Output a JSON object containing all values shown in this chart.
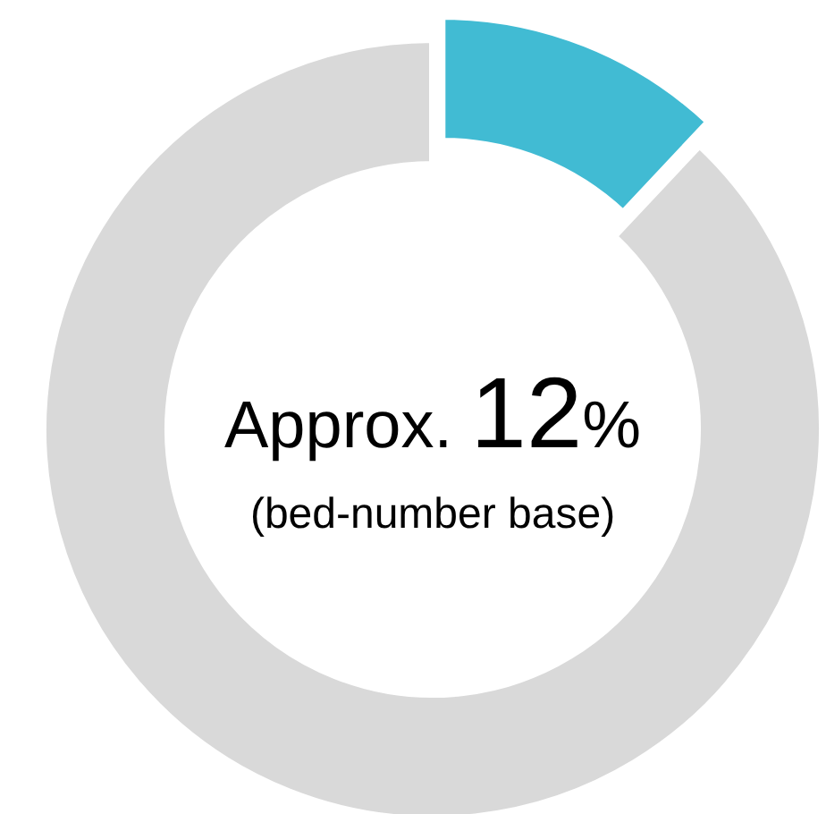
{
  "chart_data": {
    "type": "donut",
    "categories": [
      null,
      null
    ],
    "values": [
      12,
      88
    ],
    "colors": [
      "#41bbd3",
      "#d9d9d9"
    ],
    "annotations": [
      "Approx. 12%",
      "(bed-number base)"
    ]
  }
}
